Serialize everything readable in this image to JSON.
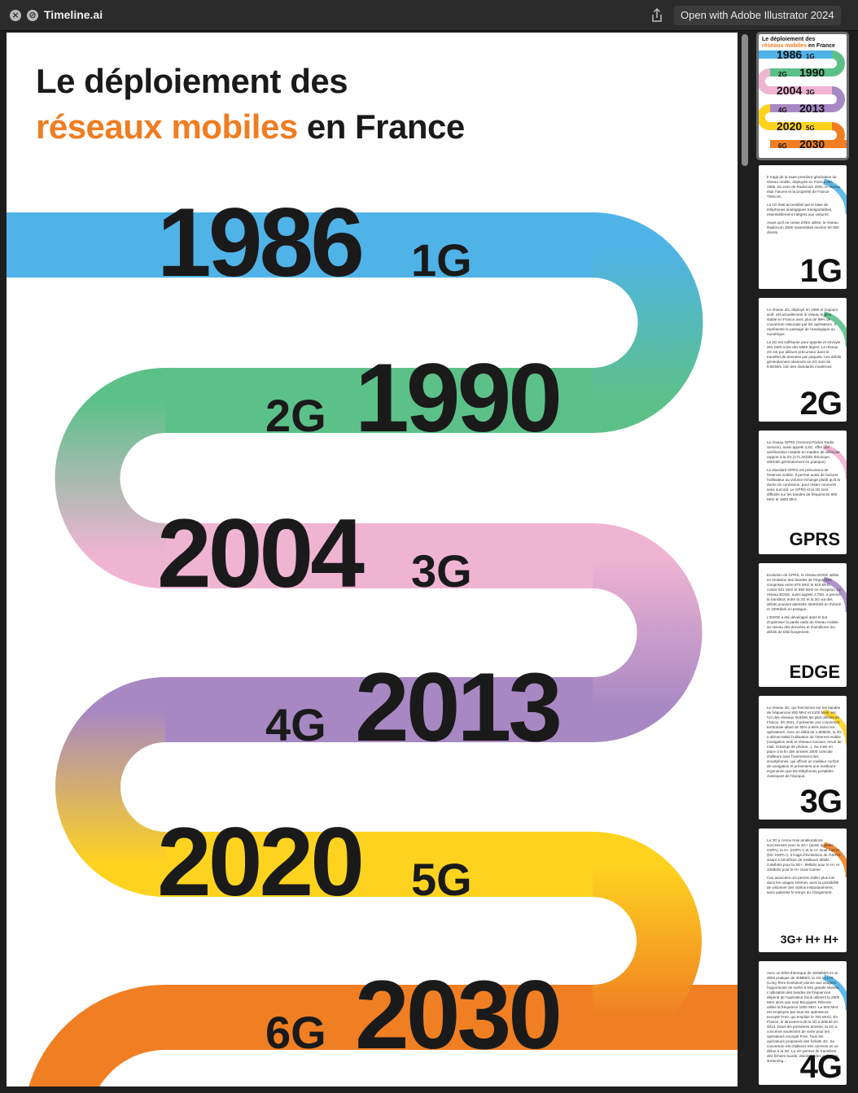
{
  "window": {
    "app_title": "Timeline.ai",
    "open_with_label": "Open with Adobe Illustrator 2024"
  },
  "poster": {
    "title_line1": "Le déploiement des",
    "title_line2_accent": "réseaux mobiles",
    "title_line2_rest": " en France",
    "colors": {
      "blue": "#4fb3e8",
      "green": "#5cc189",
      "pink": "#f0b4d3",
      "purple": "#a788c3",
      "yellow": "#fed320",
      "orange": "#f07f23",
      "text": "#1a1a1a",
      "accent": "#ef7d22"
    },
    "milestones": [
      {
        "year": "1986",
        "gen": "1G"
      },
      {
        "year": "1990",
        "gen": "2G"
      },
      {
        "year": "2004",
        "gen": "3G"
      },
      {
        "year": "2013",
        "gen": "4G"
      },
      {
        "year": "2020",
        "gen": "5G"
      },
      {
        "year": "2030",
        "gen": "6G"
      }
    ]
  },
  "sidebar": {
    "thumbs": [
      {
        "kind": "overview",
        "title_line1": "Le déploiement des",
        "title_accent": "réseaux mobiles",
        "title_rest": " en France",
        "rows": [
          {
            "year": "1986",
            "gen": "1G"
          },
          {
            "year": "1990",
            "gen": "2G"
          },
          {
            "year": "2004",
            "gen": "3G"
          },
          {
            "year": "2013",
            "gen": "4G"
          },
          {
            "year": "2020",
            "gen": "5G"
          },
          {
            "year": "2030",
            "gen": "6G"
          }
        ]
      },
      {
        "kind": "detail",
        "big": "1G",
        "paragraphs": [
          "Il s'agit de la toute première génération de réseau mobile, déployée en France dès 1986. Du nom de Radiocom 2000, le réseau était l'œuvre et la propriété de France Télécom.",
          "La 1G était accessible par le biais de téléphones analogiques transportables, essentiellement intégrés aux voitures.",
          "Avant qu'il ne cesse d'être utilisé, le réseau Radiocom 2000 rassemblait environ 60 000 clients."
        ]
      },
      {
        "kind": "detail",
        "big": "2G",
        "paragraphs": [
          "Le réseau 2G, déployé en 1990 et toujours actif, est actuellement le réseau le plus stable en France avec plus de 99% de couverture nationale par les opérateurs. Il représente le passage de l'analogique au numérique.",
          "La 2G est suffisante pour appeler et envoyer des SMS voire des MMS légers. Le réseau 2G est par ailleurs précurseur dans le transfert de données par paquets. Les débits généralement observés en 2G sont de 9,6Kbit/s, loin des standards modernes."
        ]
      },
      {
        "kind": "detail",
        "med": "GPRS",
        "paragraphs": [
          "Le réseau GPRS (General Packet Radio Service), aussi appelé 2,5G, offre une amélioration notable en matière de débit par rapport à la 2G (171,2Kbit/s théorique, 40Kbit/s généralement en pratique).",
          "Le standard GPRS est précurseur de l'internet mobile. Il permet aussi de facturer l'utilisateur au volume échangé plutôt qu'à la durée de connexion, pour rester connecté sans surcoût. Le GPRS et la 2G sont diffusés sur les bandes de fréquences 900 MHz et 1800 MHz."
        ]
      },
      {
        "kind": "detail",
        "med": "EDGE",
        "paragraphs": [
          "Evolution du GPRS, le réseau EDGE utilise en émission des bandes de fréquences comprises entre 876 MHz et 915 MHz, contre 921 MHz et 960 MHz en réception. Le réseau EDGE, aussi appelé 2,75G, a permis la transition entre la 2G et la 3G via des débits pouvant atteindre 384Kbit/s en théorie et 100Kbit/s en pratique.",
          "L'EDGE a été développé dans le but d'optimiser la partie radio du réseau mobile au niveau des données et d'améliorer les débits de téléchargement."
        ]
      },
      {
        "kind": "detail",
        "big": "3G",
        "paragraphs": [
          "Le réseau 3G, qui fonctionne sur les bandes de fréquences 900 MHz et 2100 MHz, est l'un des réseaux mobiles les plus utilisés en France. En 2021, il présente une couverture territoriale allant de 92% à 96% selon les opérateurs. Avec un débit de 1,9Mbit/s, la 3G a démocratisé l'utilisation de l'internet mobile (navigation web et réseaux sociaux, envoi de mail, échange de photos...). Sa mise en place à la fin des années 2000 coïncide d'ailleurs avec l'avènement des smartphones, qui offrent un meilleur confort de navigation et présentent une meilleure ergonomie que les téléphones portables classiques de l'époque."
        ]
      },
      {
        "kind": "detail",
        "small": "3G+ H+ H+",
        "paragraphs": [
          "La 3G a connu trois améliorations successives avec la 3G+ (aussi appelée HSPA), la H+ (HSPA+) et la H+ Dual Carrier (DC-HSPA+). Il s'agit d'évolutions de l'UMTS visant à bénéficier de meilleurs débits : 3,6Mbit/s pour la 3G+, 5Mbit/s pour le H+ et 10Mbit/s pour le H+ Dual Carrier.",
          "Ces avancées ont permis d'aller plus loin dans les usages internet, avec la possibilité de visionner des vidéos instantanément, sans patienter le temps du chargement."
        ]
      },
      {
        "kind": "detail",
        "big": "4G",
        "paragraphs": [
          "Avec un débit théorique de 150Mbit/s et un débit pratique de 40Mbit/s, la 4G ou LTE (Long Term Evolution) donne aux usagers l'opportunité de surfer à très grande vitesse. L'utilisation des bandes de fréquences dépend de l'opérateur (tous utilisent la 2600 MHz alors que seul Bouygues Telecom utilise la fréquence 1800 MHz. La 800 MHz est employée par tous les opérateurs excepté Free, qui emploie le 700 MHz). En France, le lancement de la 4G a débuté en 2013. Dans les premières années, la 4G a concerné seulement de verte pour les opérateurs excepté Free. Tous les opérateurs proposent des forfaits 4G. Sa couverture est d'ailleurs très correcte en ce début à la 3G. La 4G permet de transférer des fichiers lourds, visionner des vidéos en streaming..."
        ]
      }
    ]
  }
}
